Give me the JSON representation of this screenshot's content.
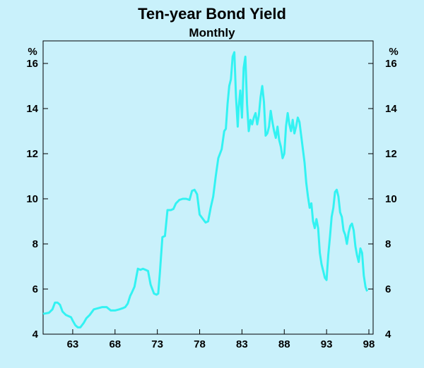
{
  "chart_data": {
    "type": "line",
    "title": "Ten-year Bond Yield",
    "subtitle": "Monthly",
    "y_unit_left": "%",
    "y_unit_right": "%",
    "xlim": [
      1959.5,
      1998.5
    ],
    "ylim": [
      4,
      17
    ],
    "x_ticks": [
      1963,
      1968,
      1973,
      1978,
      1983,
      1988,
      1993,
      1998
    ],
    "x_tick_labels": [
      "63",
      "68",
      "73",
      "78",
      "83",
      "88",
      "93",
      "98"
    ],
    "y_ticks": [
      4,
      6,
      8,
      10,
      12,
      14,
      16
    ],
    "y_tick_labels": [
      "4",
      "6",
      "8",
      "10",
      "12",
      "14",
      "16"
    ],
    "line_color": "#33f2f2",
    "grid": false,
    "series": [
      {
        "x": [
          1959.5,
          1960.2,
          1960.6,
          1960.9,
          1961.2,
          1961.5,
          1961.8,
          1962.2,
          1962.5,
          1962.8,
          1963.0,
          1963.3,
          1963.6,
          1963.9,
          1964.3,
          1964.6,
          1965.0,
          1965.5,
          1966.0,
          1966.5,
          1967.0,
          1967.5,
          1968.0,
          1968.5,
          1968.9,
          1969.2,
          1969.5,
          1969.8,
          1970.0,
          1970.3,
          1970.7,
          1971.0,
          1971.3,
          1971.6,
          1971.9,
          1972.2,
          1972.6,
          1972.9,
          1973.1,
          1973.3,
          1973.6,
          1973.9,
          1974.2,
          1974.6,
          1974.9,
          1975.2,
          1975.6,
          1976.0,
          1976.4,
          1976.8,
          1977.1,
          1977.4,
          1977.7,
          1978.0,
          1978.4,
          1978.7,
          1979.0,
          1979.3,
          1979.6,
          1979.9,
          1980.2,
          1980.6,
          1980.9,
          1981.1,
          1981.3,
          1981.5,
          1981.7,
          1981.9,
          1982.1,
          1982.3,
          1982.5,
          1982.6,
          1982.8,
          1983.0,
          1983.2,
          1983.4,
          1983.6,
          1983.8,
          1984.0,
          1984.2,
          1984.4,
          1984.6,
          1984.8,
          1985.0,
          1985.2,
          1985.4,
          1985.6,
          1985.8,
          1986.0,
          1986.2,
          1986.4,
          1986.6,
          1986.8,
          1987.0,
          1987.2,
          1987.4,
          1987.6,
          1987.8,
          1988.0,
          1988.2,
          1988.4,
          1988.6,
          1988.8,
          1989.0,
          1989.2,
          1989.4,
          1989.6,
          1989.8,
          1990.0,
          1990.2,
          1990.4,
          1990.6,
          1990.8,
          1991.0,
          1991.2,
          1991.4,
          1991.6,
          1991.8,
          1992.0,
          1992.2,
          1992.4,
          1992.6,
          1992.8,
          1993.0,
          1993.2,
          1993.4,
          1993.6,
          1993.8,
          1994.0,
          1994.2,
          1994.4,
          1994.6,
          1994.8,
          1995.0,
          1995.2,
          1995.4,
          1995.6,
          1995.8,
          1996.0,
          1996.2,
          1996.4,
          1996.6,
          1996.8,
          1997.0,
          1997.2,
          1997.4,
          1997.6,
          1997.8
        ],
        "y": [
          4.9,
          4.95,
          5.1,
          5.4,
          5.4,
          5.3,
          5.0,
          4.85,
          4.8,
          4.75,
          4.6,
          4.4,
          4.3,
          4.3,
          4.5,
          4.7,
          4.85,
          5.1,
          5.15,
          5.2,
          5.2,
          5.05,
          5.05,
          5.1,
          5.15,
          5.2,
          5.35,
          5.7,
          5.85,
          6.1,
          6.9,
          6.85,
          6.9,
          6.85,
          6.8,
          6.2,
          5.8,
          5.75,
          5.8,
          6.7,
          8.3,
          8.35,
          9.5,
          9.5,
          9.55,
          9.8,
          9.95,
          10.0,
          10.0,
          9.95,
          10.35,
          10.4,
          10.2,
          9.3,
          9.1,
          8.95,
          9.0,
          9.6,
          10.1,
          11.0,
          11.8,
          12.2,
          13.0,
          13.1,
          14.2,
          15.0,
          15.3,
          16.3,
          16.5,
          14.5,
          13.2,
          14.0,
          14.8,
          13.6,
          15.8,
          16.3,
          14.2,
          13.0,
          13.5,
          13.3,
          13.6,
          13.8,
          13.3,
          13.7,
          14.5,
          15.0,
          14.3,
          12.8,
          12.9,
          13.2,
          13.9,
          13.4,
          13.0,
          12.7,
          13.2,
          12.6,
          12.3,
          11.8,
          12.0,
          13.2,
          13.8,
          13.3,
          13.0,
          13.5,
          12.9,
          13.2,
          13.6,
          13.4,
          12.8,
          12.2,
          11.6,
          10.7,
          10.1,
          9.6,
          9.8,
          9.0,
          8.7,
          9.1,
          8.7,
          7.6,
          7.1,
          6.8,
          6.5,
          6.4,
          7.5,
          8.3,
          9.2,
          9.6,
          10.3,
          10.4,
          10.1,
          9.4,
          9.2,
          8.6,
          8.4,
          8.0,
          8.5,
          8.8,
          8.9,
          8.6,
          7.9,
          7.5,
          7.2,
          7.8,
          7.6,
          6.6,
          6.1,
          5.9
        ]
      }
    ]
  }
}
